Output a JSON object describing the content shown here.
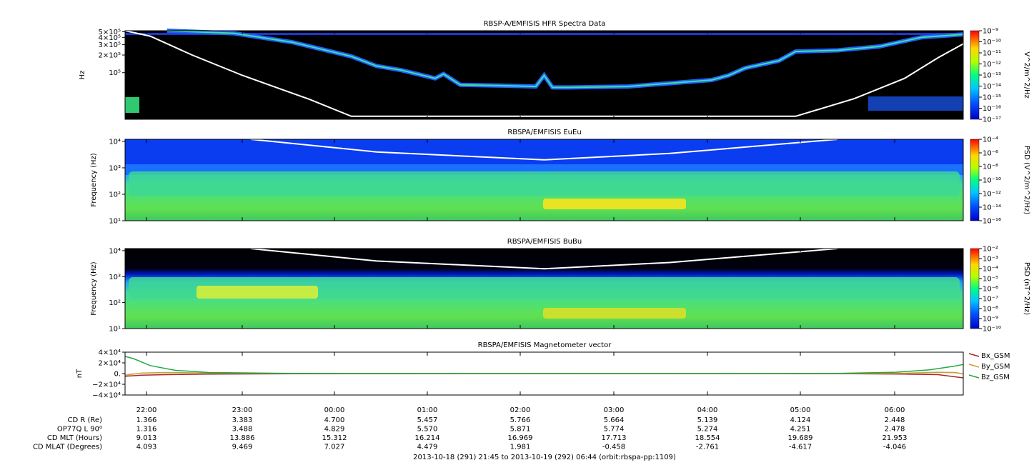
{
  "chart_data": [
    {
      "type": "heatmap",
      "title": "RBSP-A/EMFISIS  HFR Spectra Data",
      "ylabel": "Hz",
      "yscale": "log",
      "ytick_labels": [
        "5×10⁵",
        "4×10⁵",
        "3×10⁵",
        "2×10⁵",
        "10⁵"
      ],
      "ytick_values": [
        500000,
        400000,
        300000,
        200000,
        100000
      ],
      "ylim": [
        16000,
        520000
      ],
      "colorbar": {
        "label": "V^2/m^2/Hz",
        "scale": "log",
        "range": [
          1e-17,
          1e-09
        ],
        "tick_labels": [
          "10⁻⁹",
          "10⁻¹⁰",
          "10⁻¹¹",
          "10⁻¹²",
          "10⁻¹³",
          "10⁻¹⁴",
          "10⁻¹⁵",
          "10⁻¹⁶",
          "10⁻¹⁷"
        ]
      },
      "background": "#000000",
      "line_curve": {
        "color": "#ffffff",
        "x": [
          0,
          0.03,
          0.08,
          0.14,
          0.22,
          0.27,
          0.8,
          0.87,
          0.93,
          0.97,
          1.0
        ],
        "y": [
          520000,
          420000,
          200000,
          90000,
          35000,
          18000,
          18000,
          36000,
          80000,
          180000,
          310000
        ]
      },
      "emission_band": {
        "x": [
          0.05,
          0.13,
          0.2,
          0.27,
          0.3,
          0.33,
          0.37,
          0.38,
          0.4,
          0.45,
          0.49,
          0.5,
          0.51,
          0.53,
          0.6,
          0.7,
          0.72,
          0.74,
          0.78,
          0.8,
          0.85,
          0.9,
          0.95,
          1.0
        ],
        "y": [
          520000,
          470000,
          330000,
          190000,
          130000,
          110000,
          80000,
          95000,
          62000,
          60000,
          58000,
          90000,
          56000,
          56000,
          58000,
          75000,
          90000,
          120000,
          160000,
          230000,
          240000,
          280000,
          400000,
          450000
        ]
      }
    },
    {
      "type": "heatmap",
      "title": "RBSPA/EMFISIS  EuEu",
      "ylabel": "Frequency (Hz)",
      "yscale": "log",
      "ytick_labels": [
        "10⁴",
        "10³",
        "10²",
        "10¹"
      ],
      "ytick_values": [
        10000,
        1000,
        100,
        10
      ],
      "ylim": [
        10,
        12000
      ],
      "colorbar": {
        "label": "PSD (V^2/m^2/Hz)",
        "scale": "log",
        "range": [
          1e-16,
          0.0001
        ],
        "tick_labels": [
          "10⁻⁴",
          "10⁻⁶",
          "10⁻⁸",
          "10⁻¹⁰",
          "10⁻¹²",
          "10⁻¹⁴",
          "10⁻¹⁶"
        ]
      },
      "line_curve": {
        "color": "#ffffff",
        "x": [
          0.15,
          0.3,
          0.5,
          0.65,
          0.85
        ],
        "y": [
          12000,
          4000,
          2000,
          3500,
          12000
        ]
      }
    },
    {
      "type": "heatmap",
      "title": "RBSPA/EMFISIS  BuBu",
      "ylabel": "Frequency (Hz)",
      "yscale": "log",
      "ytick_labels": [
        "10⁴",
        "10³",
        "10²",
        "10¹"
      ],
      "ytick_values": [
        10000,
        1000,
        100,
        10
      ],
      "ylim": [
        10,
        12000
      ],
      "colorbar": {
        "label": "PSD (nT^2/Hz)",
        "scale": "log",
        "range": [
          1e-10,
          0.01
        ],
        "tick_labels": [
          "10⁻²",
          "10⁻³",
          "10⁻⁴",
          "10⁻⁵",
          "10⁻⁶",
          "10⁻⁷",
          "10⁻⁸",
          "10⁻⁹",
          "10⁻¹⁰"
        ]
      },
      "line_curve": {
        "color": "#ffffff",
        "x": [
          0.15,
          0.3,
          0.5,
          0.65,
          0.85
        ],
        "y": [
          12000,
          4000,
          2000,
          3500,
          12000
        ]
      }
    },
    {
      "type": "line",
      "title": "RBSPA/EMFISIS  Magnetometer vector",
      "ylabel": "nT",
      "ylim": [
        -40000,
        40000
      ],
      "ytick_labels": [
        "4×10⁴",
        "2×10⁴",
        "0.",
        "−2×10⁴",
        "−4×10⁴"
      ],
      "ytick_values": [
        40000,
        20000,
        0,
        -20000,
        -40000
      ],
      "legend": "right",
      "series": [
        {
          "name": "Bx_GSM",
          "color": "#a52a2a",
          "x": [
            0,
            0.02,
            0.05,
            0.1,
            0.2,
            0.5,
            0.85,
            0.93,
            0.97,
            0.99,
            1.0
          ],
          "y": [
            -5000,
            -3000,
            -2000,
            -1000,
            -300,
            0,
            -200,
            -1000,
            -2000,
            -6000,
            -8000
          ]
        },
        {
          "name": "By_GSM",
          "color": "#c8a030",
          "x": [
            0,
            0.02,
            0.05,
            0.1,
            0.2,
            0.5,
            0.85,
            0.93,
            0.97,
            0.99,
            1.0
          ],
          "y": [
            -3000,
            1000,
            2000,
            1000,
            200,
            0,
            100,
            600,
            2500,
            2000,
            -500
          ]
        },
        {
          "name": "Bz_GSM",
          "color": "#22aa44",
          "x": [
            0,
            0.01,
            0.03,
            0.06,
            0.1,
            0.2,
            0.5,
            0.85,
            0.92,
            0.96,
            0.99,
            1.0
          ],
          "y": [
            32000,
            28000,
            15000,
            6000,
            2000,
            300,
            0,
            300,
            2500,
            7000,
            14000,
            17000
          ]
        }
      ],
      "xtick_labels": [
        "22:00",
        "23:00",
        "00:00",
        "01:00",
        "02:00",
        "03:00",
        "04:00",
        "05:00",
        "06:00"
      ]
    }
  ],
  "ephemeris": {
    "rows": [
      {
        "label": "CD R (Re)",
        "values": [
          "1.366",
          "3.383",
          "4.700",
          "5.457",
          "5.766",
          "5.664",
          "5.139",
          "4.124",
          "2.448"
        ]
      },
      {
        "label": "OP77Q L 90⁰",
        "values": [
          "1.316",
          "3.488",
          "4.829",
          "5.570",
          "5.871",
          "5.774",
          "5.274",
          "4.251",
          "2.478"
        ]
      },
      {
        "label": "CD MLT (Hours)",
        "values": [
          "9.013",
          "13.886",
          "15.312",
          "16.214",
          "16.969",
          "17.713",
          "18.554",
          "19.689",
          "21.953"
        ]
      },
      {
        "label": "CD MLAT (Degrees)",
        "values": [
          "4.093",
          "9.469",
          "7.027",
          "4.479",
          "1.981",
          "-0.458",
          "-2.761",
          "-4.617",
          "-4.046"
        ]
      }
    ]
  },
  "time_range": "2013-10-18 (291) 21:45 to 2013-10-19 (292) 06:44 (orbit:rbspa-pp:1109)"
}
